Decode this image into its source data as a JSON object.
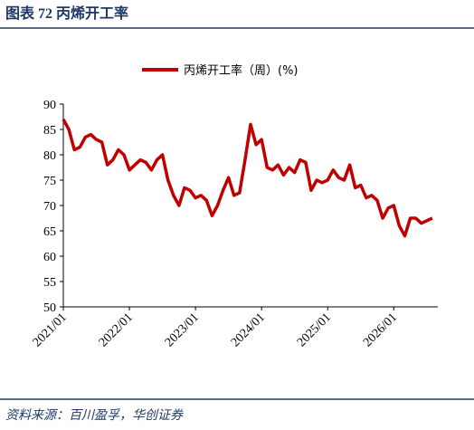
{
  "header": {
    "title": "图表 72 丙烯开工率"
  },
  "chart_data": {
    "type": "line",
    "x": [
      "2021/01",
      "2021/02",
      "2021/03",
      "2021/04",
      "2021/05",
      "2021/06",
      "2021/07",
      "2021/08",
      "2021/09",
      "2021/10",
      "2021/11",
      "2021/12",
      "2022/01",
      "2022/02",
      "2022/03",
      "2022/04",
      "2022/05",
      "2022/06",
      "2022/07",
      "2022/08",
      "2022/09",
      "2022/10",
      "2022/11",
      "2022/12",
      "2023/01",
      "2023/02",
      "2023/03",
      "2023/04",
      "2023/05",
      "2023/06",
      "2023/07",
      "2023/08",
      "2023/09",
      "2023/10",
      "2023/11",
      "2023/12",
      "2024/01",
      "2024/02",
      "2024/03",
      "2024/04",
      "2024/05",
      "2024/06",
      "2024/07",
      "2024/08",
      "2024/09",
      "2024/10",
      "2024/11",
      "2024/12",
      "2025/01",
      "2025/02",
      "2025/03",
      "2025/04",
      "2025/05",
      "2025/06",
      "2025/07",
      "2025/08",
      "2025/09",
      "2025/10",
      "2025/11",
      "2025/12",
      "2026/01",
      "2026/02",
      "2026/03",
      "2026/04",
      "2026/05",
      "2026/06",
      "2026/07",
      "2026/08"
    ],
    "series": [
      {
        "name": "丙烯开工率（周）(%)",
        "color": "#c00000",
        "values": [
          87,
          85,
          81,
          81.5,
          83.5,
          84,
          83,
          82.5,
          78,
          79,
          81,
          80,
          77,
          78,
          79,
          78.5,
          77,
          79,
          80,
          75,
          72,
          70,
          73.5,
          73,
          71.5,
          72,
          71,
          68,
          70,
          73,
          75.5,
          72,
          72.5,
          79,
          86,
          82,
          83,
          77.5,
          77,
          78,
          76,
          77.5,
          76.5,
          79,
          78.5,
          73,
          75,
          74.5,
          75,
          77,
          75.5,
          75,
          78,
          73.5,
          74,
          71.5,
          72,
          71,
          67.5,
          69.5,
          70,
          66,
          64,
          67.5,
          67.5,
          66.5,
          67,
          67.5
        ]
      }
    ],
    "xlim": [
      "2021/01",
      "2026/09"
    ],
    "xticks": [
      "2021/01",
      "2022/01",
      "2023/01",
      "2024/01",
      "2025/01",
      "2026/01"
    ],
    "ylim": [
      50,
      90
    ],
    "yticks": [
      50,
      55,
      60,
      65,
      70,
      75,
      80,
      85,
      90
    ]
  },
  "footer": {
    "source": "资料来源：百川盈孚，华创证券"
  }
}
